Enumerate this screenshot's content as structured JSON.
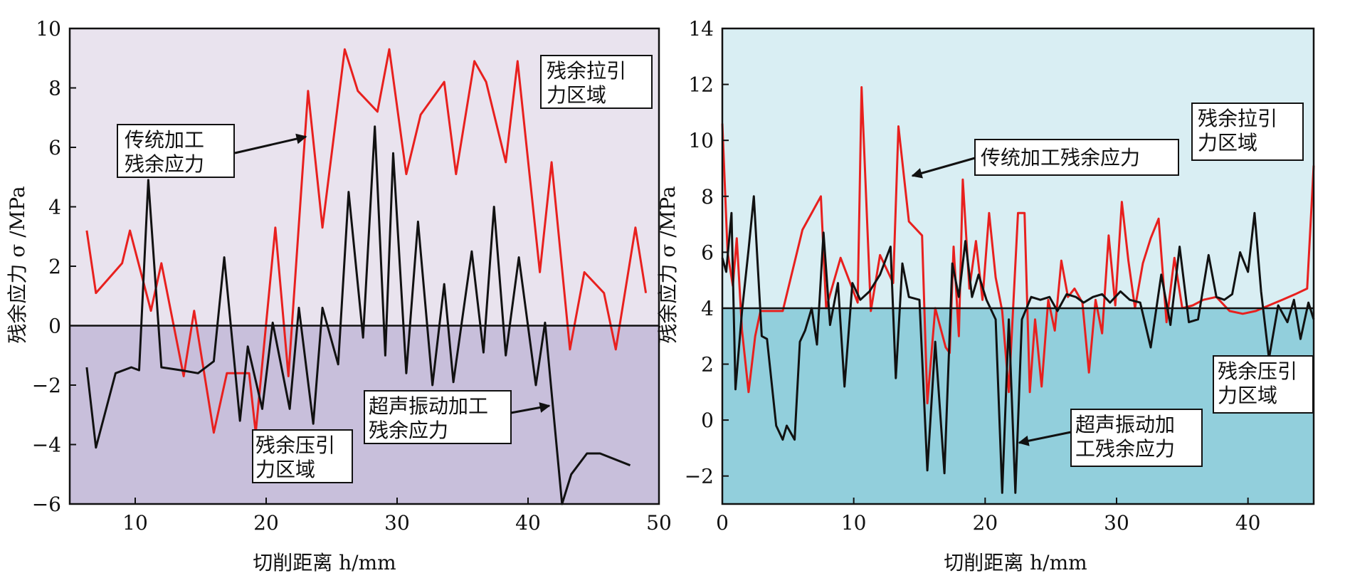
{
  "chart_data": [
    {
      "type": "line",
      "xlabel": "切削距离 h/mm",
      "ylabel": "残余应力 σ /MPa",
      "xlim": [
        5,
        50
      ],
      "ylim": [
        -6,
        10
      ],
      "xticks": [
        10,
        20,
        30,
        40,
        50
      ],
      "yticks": [
        10,
        8,
        6,
        4,
        2,
        0,
        -2,
        -4,
        -6
      ],
      "divider": 0,
      "colors": {
        "upper": "#e9e3ee",
        "lower": "#c8bfdb",
        "red": "#e8201e",
        "black": "#111111"
      },
      "series": [
        {
          "color": "red",
          "x": [
            6.3,
            7.0,
            9.0,
            9.6,
            11.2,
            12.0,
            13.7,
            14.5,
            16.0,
            17.0,
            18.7,
            19.2,
            20.7,
            21.7,
            23.2,
            24.3,
            26.0,
            27.0,
            28.5,
            29.4,
            30.7,
            31.8,
            33.6,
            34.5,
            35.9,
            36.8,
            38.3,
            39.2,
            40.9,
            41.8,
            43.2,
            44.3,
            45.8,
            46.7,
            48.2,
            49.0
          ],
          "y": [
            3.2,
            1.1,
            2.1,
            3.2,
            0.5,
            2.1,
            -1.7,
            0.5,
            -3.6,
            -1.6,
            -1.6,
            -3.6,
            3.3,
            -1.7,
            7.9,
            3.3,
            9.3,
            7.9,
            7.2,
            9.3,
            5.1,
            7.1,
            8.2,
            5.1,
            8.9,
            8.2,
            5.5,
            8.9,
            1.8,
            5.5,
            -0.8,
            1.8,
            1.1,
            -0.8,
            3.3,
            1.1
          ]
        },
        {
          "color": "black",
          "x": [
            6.3,
            7.0,
            8.5,
            9.7,
            10.3,
            11.0,
            12.0,
            13.5,
            14.8,
            16.0,
            16.8,
            18.0,
            18.6,
            19.7,
            20.5,
            21.8,
            22.5,
            23.6,
            24.3,
            25.5,
            26.3,
            27.4,
            28.3,
            29.1,
            29.7,
            30.7,
            31.6,
            32.7,
            33.6,
            34.3,
            35.7,
            36.6,
            37.4,
            38.3,
            39.3,
            40.6,
            41.3,
            42.6,
            43.3,
            44.5,
            45.5,
            47.8
          ],
          "y": [
            -1.4,
            -4.1,
            -1.6,
            -1.4,
            -1.5,
            4.9,
            -1.4,
            -1.5,
            -1.6,
            -1.2,
            2.3,
            -3.2,
            -0.7,
            -2.8,
            0.1,
            -2.8,
            0.6,
            -3.3,
            0.6,
            -1.3,
            4.5,
            -0.4,
            6.7,
            -1.0,
            5.8,
            -1.6,
            3.5,
            -2.0,
            1.4,
            -1.9,
            2.5,
            -0.9,
            4.0,
            -1.0,
            2.3,
            -2.0,
            0.1,
            -6.0,
            -5.0,
            -4.3,
            -4.3,
            -4.7
          ]
        }
      ],
      "annotations": [
        {
          "lines": [
            "残余拉引",
            "力区域"
          ]
        },
        {
          "lines": [
            "传统加工",
            "残余应力"
          ]
        },
        {
          "lines": [
            "超声振动加工",
            "残余应力"
          ]
        },
        {
          "lines": [
            "残余压引",
            "力区域"
          ]
        }
      ]
    },
    {
      "type": "line",
      "xlabel": "切削距离 h/mm",
      "ylabel": "残余应力 σ /MPa",
      "xlim": [
        0,
        45
      ],
      "ylim": [
        -3,
        14
      ],
      "xticks": [
        0,
        10,
        20,
        30,
        40
      ],
      "yticks": [
        14,
        12,
        10,
        8,
        6,
        4,
        2,
        0,
        -2
      ],
      "divider": 4,
      "colors": {
        "upper": "#d9eef3",
        "lower": "#92cfdc",
        "red": "#e8201e",
        "black": "#111111"
      },
      "series": [
        {
          "color": "red",
          "x": [
            0,
            0.4,
            0.8,
            1.1,
            1.5,
            2.0,
            2.5,
            2.9,
            4.6,
            6.1,
            7.5,
            7.9,
            9.0,
            10.3,
            10.6,
            11.3,
            12.0,
            13.0,
            13.4,
            14.2,
            15.2,
            15.6,
            16.2,
            17.0,
            17.3,
            17.6,
            18.0,
            18.3,
            18.8,
            19.3,
            19.8,
            20.3,
            20.8,
            21.3,
            21.8,
            22.5,
            23.0,
            23.4,
            23.8,
            24.3,
            24.8,
            25.3,
            25.8,
            26.3,
            26.8,
            27.4,
            27.9,
            28.4,
            28.9,
            29.4,
            29.9,
            30.4,
            30.9,
            31.4,
            32.0,
            32.6,
            33.2,
            33.8,
            34.4,
            35.0,
            35.8,
            36.6,
            37.6,
            38.6,
            39.6,
            40.6,
            41.6,
            42.6,
            43.6,
            44.5,
            45.0
          ],
          "y": [
            10.6,
            6.0,
            4.8,
            6.5,
            3.2,
            1.0,
            3.0,
            3.9,
            3.9,
            6.8,
            8.0,
            4.0,
            5.8,
            4.2,
            11.9,
            3.9,
            5.9,
            4.9,
            10.5,
            7.1,
            6.6,
            0.6,
            4.0,
            2.6,
            2.4,
            6.2,
            3.0,
            8.6,
            4.7,
            6.4,
            4.3,
            7.4,
            5.1,
            3.9,
            1.0,
            7.4,
            7.4,
            1.0,
            3.6,
            1.2,
            4.3,
            3.2,
            5.7,
            4.4,
            4.7,
            4.2,
            1.7,
            4.3,
            3.1,
            6.6,
            4.1,
            7.8,
            5.7,
            4.0,
            5.6,
            6.5,
            7.2,
            3.5,
            5.8,
            4.0,
            4.1,
            4.3,
            4.4,
            3.9,
            3.8,
            3.9,
            4.1,
            4.3,
            4.5,
            4.7,
            9.1
          ]
        },
        {
          "color": "black",
          "x": [
            0,
            0.3,
            0.7,
            1.0,
            1.5,
            2.0,
            2.4,
            3.0,
            3.4,
            4.1,
            4.6,
            4.9,
            5.5,
            5.9,
            6.3,
            6.8,
            7.2,
            7.7,
            8.2,
            8.8,
            9.3,
            9.9,
            10.5,
            11.2,
            12.0,
            12.8,
            13.2,
            13.7,
            14.2,
            15.0,
            15.6,
            16.2,
            16.9,
            17.5,
            18.0,
            18.5,
            19.0,
            19.5,
            20.1,
            20.8,
            21.3,
            21.8,
            22.3,
            22.8,
            23.5,
            24.2,
            24.9,
            25.5,
            26.2,
            26.9,
            27.5,
            28.2,
            28.9,
            29.5,
            30.3,
            31.0,
            31.8,
            32.6,
            33.4,
            34.1,
            34.8,
            35.5,
            36.2,
            37.0,
            37.6,
            38.2,
            38.8,
            39.4,
            40.0,
            40.5,
            41.0,
            41.6,
            42.3,
            43.0,
            43.5,
            44.0,
            44.6,
            45.0
          ],
          "y": [
            5.8,
            5.3,
            7.4,
            1.1,
            3.9,
            6.1,
            8.0,
            3.0,
            2.9,
            -0.2,
            -0.7,
            -0.2,
            -0.7,
            2.8,
            3.2,
            4.0,
            2.7,
            6.7,
            3.4,
            4.9,
            1.2,
            4.9,
            4.3,
            4.6,
            5.2,
            6.2,
            1.5,
            5.6,
            4.4,
            4.3,
            -1.8,
            2.8,
            -1.9,
            5.6,
            4.4,
            6.4,
            4.4,
            5.2,
            4.3,
            3.6,
            -2.6,
            3.6,
            -2.6,
            3.6,
            4.4,
            4.3,
            4.4,
            3.9,
            4.5,
            4.4,
            4.2,
            4.4,
            4.5,
            4.2,
            4.6,
            4.3,
            4.2,
            2.6,
            5.2,
            3.4,
            6.2,
            3.5,
            3.6,
            5.9,
            4.4,
            4.3,
            4.5,
            6.0,
            5.3,
            7.4,
            4.6,
            2.2,
            4.1,
            3.5,
            4.3,
            2.9,
            4.2,
            3.6
          ]
        }
      ],
      "annotations": [
        {
          "lines": [
            "残余拉引",
            "力区域"
          ]
        },
        {
          "lines": [
            "传统加工残余应力"
          ]
        },
        {
          "lines": [
            "残余压引",
            "力区域"
          ]
        },
        {
          "lines": [
            "超声振动加",
            "工残余应力"
          ]
        }
      ]
    }
  ]
}
